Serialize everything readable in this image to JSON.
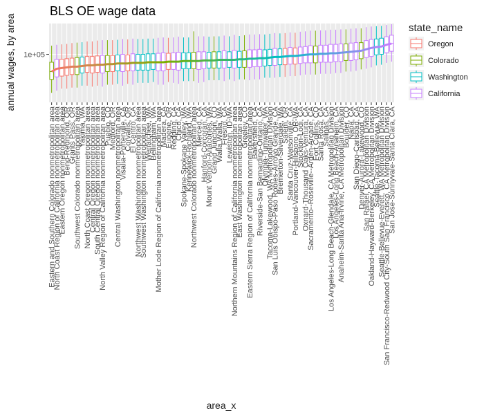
{
  "chart_data": {
    "type": "boxplot",
    "title": "BLS OE wage data",
    "xlabel": "area_x",
    "ylabel": "annual wages, by area",
    "y_scale": "log10",
    "y_ticks": [
      {
        "value": 100000,
        "label": "1e+05"
      }
    ],
    "ylim": [
      40000,
      180000
    ],
    "grid": true,
    "legend": {
      "title": "state_name",
      "position": "right",
      "entries": [
        {
          "name": "Oregon",
          "color": "#F8766D"
        },
        {
          "name": "Colorado",
          "color": "#7CAE00"
        },
        {
          "name": "Washington",
          "color": "#00BFC4"
        },
        {
          "name": "California",
          "color": "#C77CFF"
        }
      ]
    },
    "median_line_colors": [
      "#F8766D",
      "#7CAE00",
      "#00BFC4",
      "#C77CFF"
    ],
    "categories": [
      "Eastern and Southern Colorado nonmetropolitan area",
      "North Coast Region of California nonmetropolitan area",
      "Eastern Oregon nonmetropolitan area",
      "Bend-Redmond, OR",
      "Grants Pass, OR",
      "Southwest Colorado nonmetropolitan area",
      "Yakima, WA",
      "North Coast Oregon nonmetropolitan area",
      "Central Oregon nonmetropolitan area",
      "South Central Oregon nonmetropolitan area",
      "North Valley Region of California nonmetropolitan area",
      "Pueblo, CO",
      "Medford, OR",
      "Central Washington nonmetropolitan area",
      "Visalia-Porterville, CA",
      "Corvallis, OR",
      "El Centro, CA",
      "Northwest Washington nonmetropolitan area",
      "Southwest Washington nonmetropolitan area",
      "Wenatchee, WA",
      "Bellingham, WA",
      "Mother Lode Region of California nonmetropolitan area",
      "Madera, CA",
      "Eugene, OR",
      "Redding, CA",
      "Chico, CA",
      "Spokane-Spokane Valley, WA",
      "Kennewick-Richland, WA",
      "Northwest Colorado nonmetropolitan area",
      "Merced, CA",
      "Hanford-Corcoran, CA",
      "Mount Vernon-Anacortes, WA",
      "Grand Junction, CO",
      "Walla Walla, WA",
      "Fresno, CA",
      "Lewiston, ID-WA",
      "Northern Mountains Region of California nonmetropolitan area",
      "East Washington nonmetropolitan area",
      "Greeley, CO",
      "Eastern Sierra Region of California nonmetropolitan area",
      "Bakersfield, CA",
      "Riverside-San Bernardino-Ontario, CA",
      "Olympia-Tumwater, WA",
      "Tacoma-Lakewood, WA Metropolitan Division",
      "San Luis Obispo-Paso Robles-Arroyo Grande, CA",
      "Bremerton-Silverdale, WA",
      "Salem, OR",
      "Santa Cruz-Watsonville, CA",
      "Portland-Vancouver-Hillsboro, OR-WA",
      "Stockton-Lodi, CA",
      "Oxnard-Thousand Oaks-Ventura, CA",
      "Sacramento--Roseville--Arden-Arcade, CA",
      "Fort Collins, CO",
      "Santa Rosa, CA",
      "Salinas, CA",
      "Los Angeles-Long Beach-Glendale, CA Metropolitan Division",
      "Los Angeles-Long Beach-Anaheim, CA",
      "Anaheim-Santa Ana-Irvine, CA Metropolitan Division",
      "Boulder, CO",
      "Napa, CA",
      "San Diego-Carlsbad, CA",
      "Denver-Aurora-Lakewood, CO",
      "San Rafael, CA Metropolitan Division",
      "Oakland-Hayward-Berkeley, CA Metropolitan Division",
      "Seattle-Tacoma-Bellevue, WA",
      "Seattle-Bellevue-Everett, WA Metropolitan Division",
      "San Francisco-Redwood City-South San Francisco, CA Metropolitan Division",
      "San Jose-Sunnyvale-Santa Clara, CA"
    ],
    "states": [
      "Colorado",
      "California",
      "Oregon",
      "Oregon",
      "Oregon",
      "Colorado",
      "Washington",
      "Oregon",
      "Oregon",
      "Oregon",
      "California",
      "Colorado",
      "Oregon",
      "Washington",
      "California",
      "Oregon",
      "California",
      "Washington",
      "Washington",
      "Washington",
      "Washington",
      "California",
      "California",
      "Oregon",
      "California",
      "California",
      "Washington",
      "Washington",
      "Colorado",
      "California",
      "California",
      "Washington",
      "Colorado",
      "Washington",
      "California",
      "Washington",
      "California",
      "Washington",
      "Colorado",
      "California",
      "California",
      "California",
      "Washington",
      "Washington",
      "California",
      "Washington",
      "Oregon",
      "California",
      "Oregon",
      "California",
      "California",
      "California",
      "Colorado",
      "California",
      "California",
      "California",
      "California",
      "California",
      "Colorado",
      "California",
      "California",
      "Colorado",
      "California",
      "California",
      "Washington",
      "Washington",
      "California",
      "California"
    ],
    "medians": [
      72000,
      76000,
      77000,
      78000,
      79000,
      79000,
      80000,
      81000,
      81000,
      82000,
      82000,
      83000,
      83000,
      84000,
      84000,
      84000,
      85000,
      85000,
      85000,
      86000,
      86000,
      86000,
      86000,
      87000,
      87000,
      87000,
      88000,
      88000,
      88000,
      88000,
      89000,
      89000,
      89000,
      90000,
      90000,
      90000,
      90000,
      91000,
      91000,
      92000,
      92000,
      93000,
      93000,
      94000,
      95000,
      95000,
      96000,
      97000,
      97000,
      98000,
      99000,
      100000,
      100000,
      101000,
      101000,
      102000,
      102000,
      103000,
      104000,
      105000,
      106000,
      107000,
      110000,
      113000,
      115000,
      116000,
      120000,
      123000
    ],
    "q1": [
      62000,
      65000,
      66000,
      67000,
      68000,
      68000,
      70000,
      71000,
      70000,
      71000,
      70000,
      72000,
      72000,
      73000,
      72000,
      73000,
      73000,
      74000,
      74000,
      74000,
      75000,
      73000,
      73000,
      75000,
      75000,
      74000,
      76000,
      76000,
      76000,
      75000,
      76000,
      77000,
      77000,
      77000,
      77000,
      78000,
      77000,
      78000,
      78000,
      78000,
      79000,
      79000,
      80000,
      81000,
      81000,
      82000,
      82000,
      83000,
      83000,
      84000,
      85000,
      85000,
      85000,
      86000,
      86000,
      86000,
      87000,
      87000,
      89000,
      89000,
      90000,
      92000,
      94000,
      96000,
      99000,
      100000,
      103000,
      106000
    ],
    "q3": [
      86000,
      91000,
      91000,
      92000,
      93000,
      94000,
      95000,
      96000,
      96000,
      97000,
      98000,
      98000,
      98000,
      99000,
      100000,
      99000,
      101000,
      100000,
      100000,
      101000,
      101000,
      102000,
      103000,
      102000,
      103000,
      104000,
      103000,
      103000,
      104000,
      105000,
      105000,
      104000,
      105000,
      105000,
      107000,
      105000,
      108000,
      106000,
      107000,
      109000,
      109000,
      110000,
      109000,
      110000,
      112000,
      111000,
      112000,
      114000,
      113000,
      115000,
      116000,
      118000,
      117000,
      119000,
      119000,
      121000,
      121000,
      122000,
      122000,
      124000,
      125000,
      125000,
      130000,
      133000,
      134000,
      136000,
      140000,
      144000
    ],
    "lower_whisker": [
      48000,
      50000,
      52000,
      52000,
      53000,
      53000,
      55000,
      55000,
      54000,
      55000,
      54000,
      56000,
      56000,
      57000,
      55000,
      57000,
      56000,
      58000,
      58000,
      58000,
      59000,
      56000,
      56000,
      59000,
      58000,
      57000,
      60000,
      60000,
      60000,
      58000,
      59000,
      61000,
      61000,
      61000,
      60000,
      62000,
      60000,
      62000,
      62000,
      61000,
      62000,
      62000,
      64000,
      64000,
      64000,
      65000,
      65000,
      66000,
      66000,
      67000,
      68000,
      68000,
      68000,
      69000,
      69000,
      69000,
      70000,
      70000,
      72000,
      72000,
      73000,
      75000,
      76000,
      78000,
      81000,
      82000,
      85000,
      87000
    ],
    "upper_whisker": [
      118000,
      120000,
      121000,
      122000,
      124000,
      125000,
      126000,
      128000,
      128000,
      130000,
      131000,
      131000,
      131000,
      132000,
      134000,
      133000,
      135000,
      134000,
      134000,
      135000,
      135000,
      137000,
      138000,
      137000,
      138000,
      140000,
      138000,
      138000,
      155000,
      141000,
      141000,
      140000,
      141000,
      141000,
      143000,
      141000,
      145000,
      142000,
      144000,
      146000,
      146000,
      147000,
      146000,
      148000,
      150000,
      149000,
      150000,
      152000,
      151000,
      154000,
      155000,
      157000,
      157000,
      158000,
      158000,
      160000,
      160000,
      161000,
      161000,
      163000,
      164000,
      164000,
      168000,
      170000,
      171000,
      172000,
      175000,
      178000
    ]
  }
}
